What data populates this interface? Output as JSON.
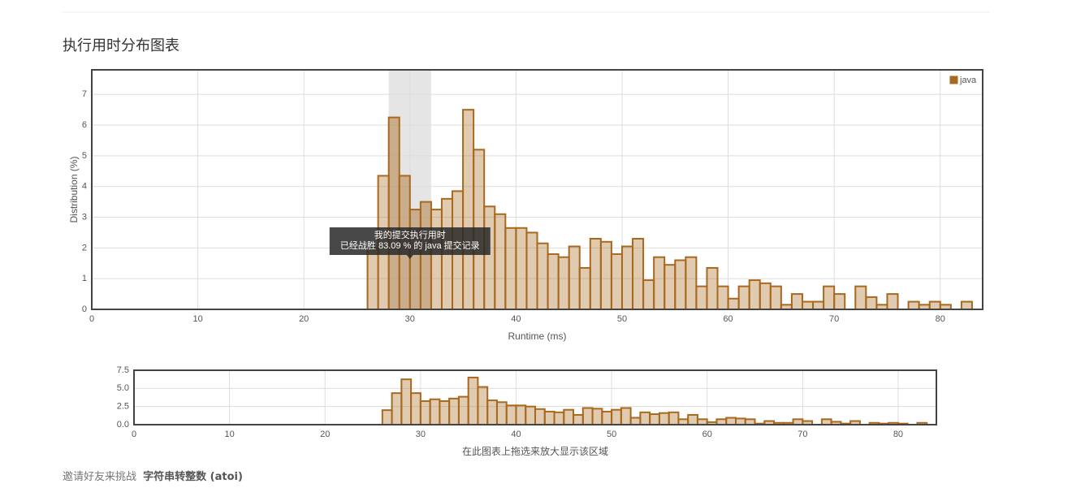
{
  "title": "执行用时分布图表",
  "chart_data": [
    {
      "type": "histogram",
      "xlabel": "Runtime (ms)",
      "ylabel": "Distribution (%)",
      "bins": [
        26,
        27,
        28,
        29,
        30,
        31,
        32,
        33,
        34,
        35,
        36,
        37,
        38,
        39,
        40,
        41,
        42,
        43,
        44,
        45,
        46,
        47,
        48,
        49,
        50,
        51,
        52,
        53,
        54,
        55,
        56,
        57,
        58,
        59,
        60,
        61,
        62,
        63,
        64,
        65,
        66,
        67,
        68,
        69,
        70,
        71,
        72,
        73,
        74,
        75,
        76,
        77,
        78,
        79,
        80,
        81,
        82,
        83
      ],
      "series": [
        {
          "name": "java",
          "color": "#a8691e",
          "values": [
            2.0,
            4.35,
            6.25,
            4.35,
            3.25,
            3.5,
            3.25,
            3.6,
            3.85,
            6.5,
            5.2,
            3.35,
            3.1,
            2.65,
            2.65,
            2.5,
            2.15,
            1.8,
            1.7,
            2.05,
            1.35,
            2.3,
            2.2,
            1.8,
            2.05,
            2.3,
            0.95,
            1.7,
            1.45,
            1.6,
            1.7,
            0.75,
            1.35,
            0.75,
            0.35,
            0.75,
            0.95,
            0.85,
            0.75,
            0.15,
            0.5,
            0.25,
            0.25,
            0.75,
            0.5,
            0,
            0.75,
            0.4,
            0.15,
            0.5,
            0,
            0.25,
            0.15,
            0.25,
            0.15,
            0,
            0.25
          ]
        }
      ],
      "xlim": [
        0,
        84
      ],
      "ylim": [
        0,
        7.8
      ],
      "xticks": [
        0,
        10,
        20,
        30,
        40,
        50,
        60,
        70,
        80
      ],
      "yticks": [
        0,
        1,
        2,
        3,
        4,
        5,
        6,
        7
      ],
      "grid": true,
      "legend": "top-right",
      "highlight": [
        28,
        32
      ],
      "tooltip": {
        "x": 30,
        "title": "我的提交执行用时",
        "text": "已经战胜 83.09 % 的 java 提交记录"
      }
    },
    {
      "type": "navigator",
      "xlabel": "在此图表上拖选来放大显示该区域",
      "xlim": [
        0,
        84
      ],
      "ylim": [
        0,
        7.5
      ],
      "xticks": [
        0,
        10,
        20,
        30,
        40,
        50,
        60,
        70,
        80
      ],
      "yticks": [
        {
          "value": 0,
          "label": "0.0"
        },
        {
          "value": 2.5,
          "label": "2.5"
        },
        {
          "value": 5,
          "label": "5.0"
        },
        {
          "value": 7.5,
          "label": "7.5"
        }
      ],
      "grid": true
    }
  ],
  "footer": {
    "prefix": "邀请好友来挑战",
    "problem": "字符串转整数 (atoi)"
  }
}
